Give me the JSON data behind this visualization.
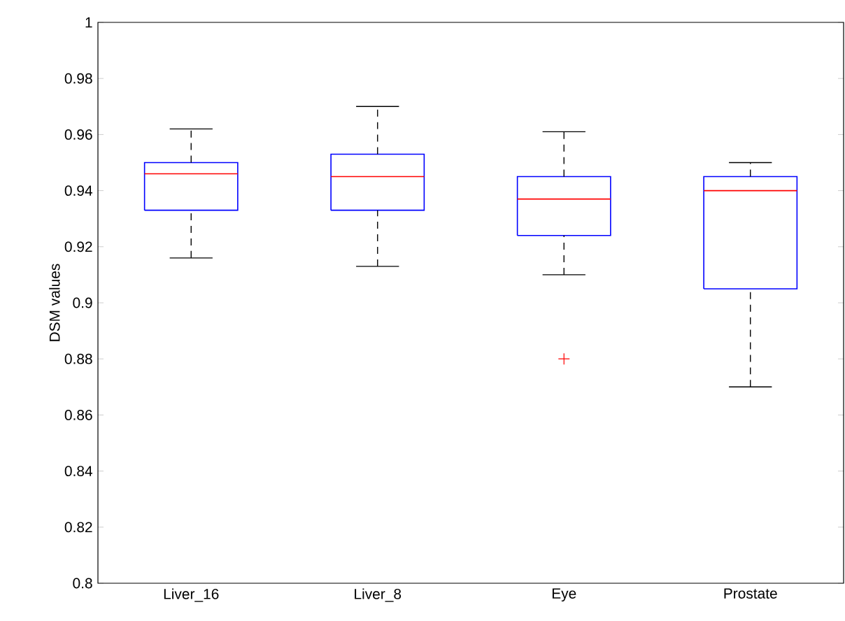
{
  "chart_data": {
    "type": "box",
    "ylabel": "DSM values",
    "categories": [
      "Liver_16",
      "Liver_8",
      "Eye",
      "Prostate"
    ],
    "color": "#0000ff",
    "boxes": [
      {
        "low": 0.916,
        "q1": 0.933,
        "median": 0.946,
        "q3": 0.95,
        "high": 0.962
      },
      {
        "low": 0.913,
        "q1": 0.933,
        "median": 0.945,
        "q3": 0.953,
        "high": 0.97
      },
      {
        "low": 0.91,
        "q1": 0.924,
        "median": 0.937,
        "q3": 0.945,
        "high": 0.961,
        "outliers": [
          0.88
        ]
      },
      {
        "low": 0.87,
        "q1": 0.905,
        "median": 0.94,
        "q3": 0.945,
        "high": 0.95
      }
    ],
    "ylim": [
      0.8,
      1
    ],
    "yticks": [
      0.8,
      0.82,
      0.84,
      0.86,
      0.88,
      0.9,
      0.92,
      0.94,
      0.96,
      0.98,
      1
    ],
    "grid": false
  }
}
